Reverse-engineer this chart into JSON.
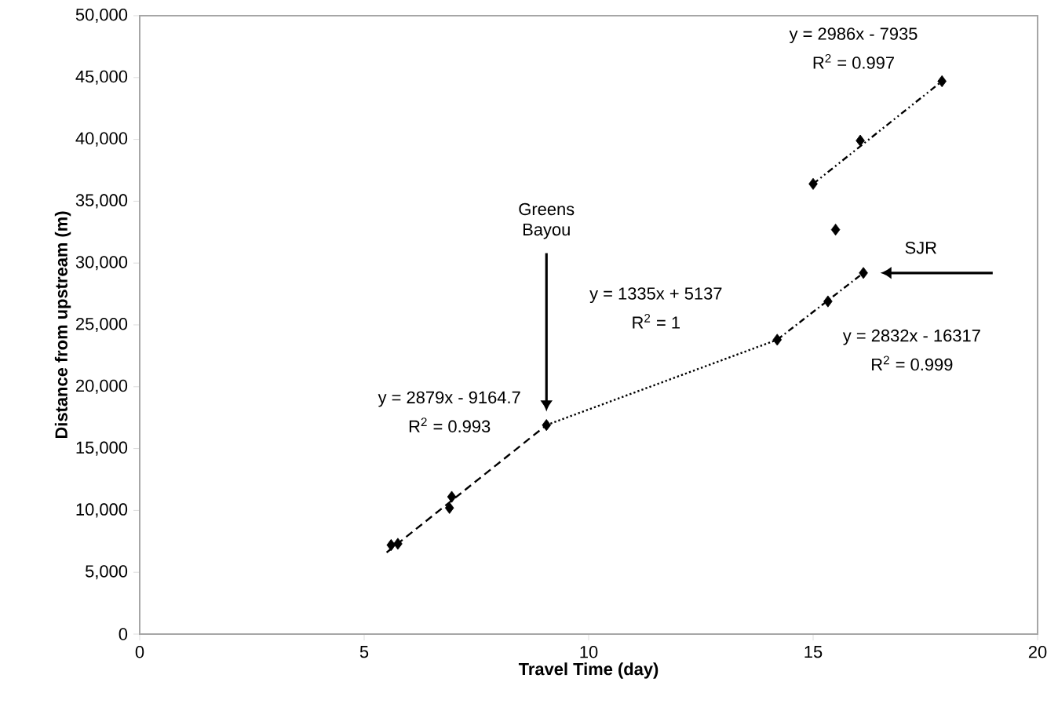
{
  "chart_data": {
    "type": "scatter",
    "xlabel": "Travel Time (day)",
    "ylabel": "Distance from upstream (m)",
    "xlim": [
      0,
      20
    ],
    "xticks": [
      0,
      5,
      10,
      15,
      20
    ],
    "ylim": [
      0,
      50000
    ],
    "yticks": [
      {
        "value": 0,
        "label": "0"
      },
      {
        "value": 5000,
        "label": "5,000"
      },
      {
        "value": 10000,
        "label": "10,000"
      },
      {
        "value": 15000,
        "label": "15,000"
      },
      {
        "value": 20000,
        "label": "20,000"
      },
      {
        "value": 25000,
        "label": "25,000"
      },
      {
        "value": 30000,
        "label": "30,000"
      },
      {
        "value": 35000,
        "label": "35,000"
      },
      {
        "value": 40000,
        "label": "40,000"
      },
      {
        "value": 45000,
        "label": "45,000"
      },
      {
        "value": 50000,
        "label": "50,000"
      }
    ],
    "marker": "diamond",
    "grid": false,
    "series": [
      {
        "color": "#000000",
        "x": [
          5.6,
          5.75,
          6.9,
          6.95,
          9.06,
          14.2,
          15.33,
          16.12,
          15.5,
          15.0,
          16.05,
          17.87
        ],
        "values": [
          7200,
          7300,
          10200,
          11100,
          16900,
          23800,
          26900,
          29200,
          32700,
          36400,
          39900,
          44700
        ]
      },
      {
        "type": "line",
        "color": "#000000",
        "line_style": "dashed",
        "marker": "none",
        "x": [
          5.5,
          9.06
        ],
        "values": [
          6600,
          16900
        ]
      },
      {
        "type": "line",
        "color": "#000000",
        "line_style": "dotted",
        "marker": "none",
        "x": [
          9.06,
          14.2
        ],
        "values": [
          16900,
          23800
        ]
      },
      {
        "type": "line",
        "color": "#000000",
        "line_style": "dashdotted",
        "marker": "none",
        "x": [
          14.2,
          16.12
        ],
        "values": [
          23800,
          29200
        ]
      },
      {
        "type": "line",
        "color": "#000000",
        "line_style": "dashdotdotted",
        "marker": "none",
        "x": [
          15.0,
          17.87
        ],
        "values": [
          36400,
          44700
        ]
      }
    ],
    "annotations": [
      "y = 2879x - 9164.7",
      "R$^{2}$ = 0.993",
      "y = 1335x + 5137",
      "R$^{2}$ = 1",
      "y = 2832x - 16317",
      "R$^{2}$ = 0.999",
      "y = 2986x - 7935",
      "R$^{2}$ = 0.997",
      "Greens Bayou",
      "SJR"
    ]
  }
}
